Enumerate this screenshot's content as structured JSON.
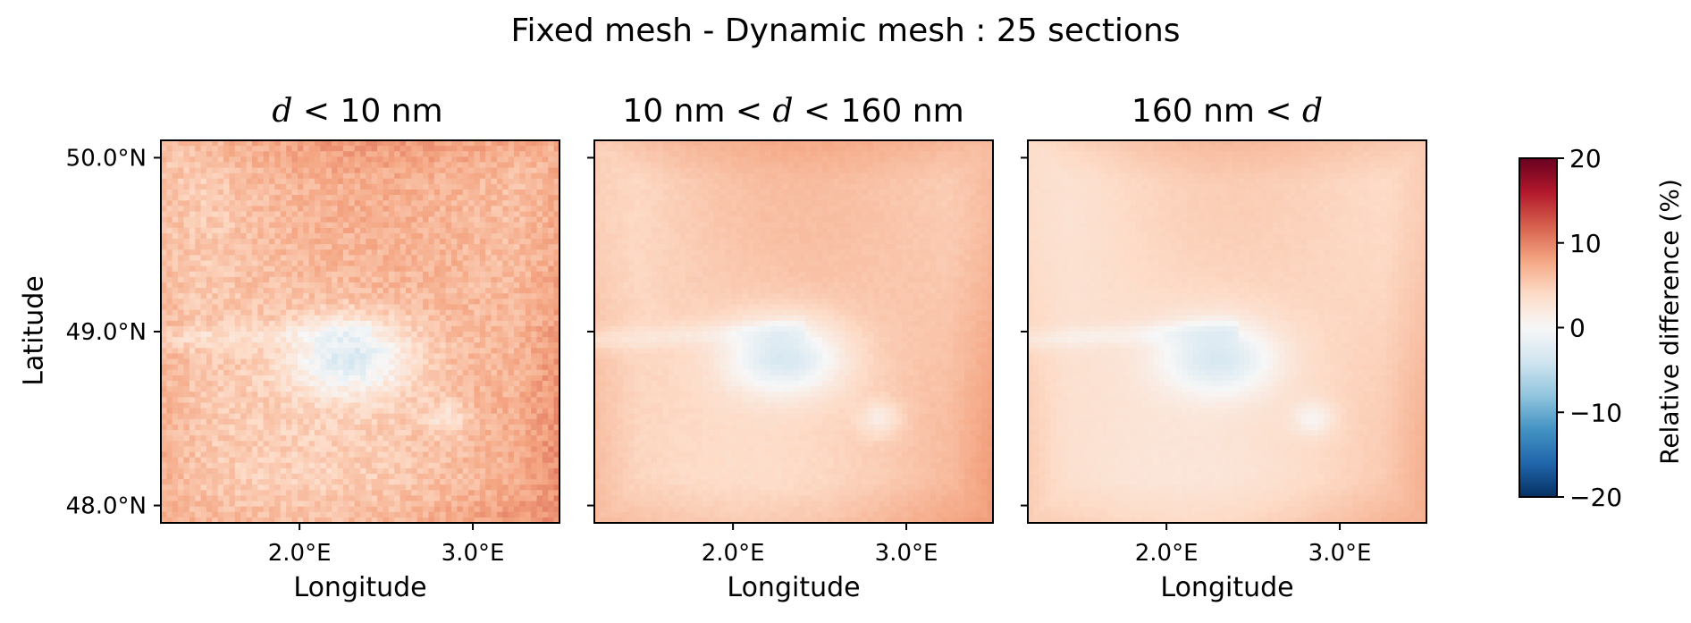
{
  "chart_data": {
    "type": "heatmap",
    "title": "Fixed mesh - Dynamic mesh : 25 sections",
    "xlabel": "Longitude",
    "ylabel": "Latitude",
    "xlim": [
      1.2,
      3.5
    ],
    "ylim": [
      47.9,
      50.1
    ],
    "x_ticks": [
      {
        "value": 2.0,
        "label": "2.0°E"
      },
      {
        "value": 3.0,
        "label": "3.0°E"
      }
    ],
    "y_ticks": [
      {
        "value": 48.0,
        "label": "48.0°N"
      },
      {
        "value": 49.0,
        "label": "49.0°N"
      },
      {
        "value": 50.0,
        "label": "50.0°N"
      }
    ],
    "colorbar": {
      "label": "Relative difference (%)",
      "colormap": "RdBu_r",
      "range": [
        -20,
        20
      ],
      "ticks": [
        {
          "value": 20,
          "label": "20"
        },
        {
          "value": 10,
          "label": "10"
        },
        {
          "value": 0,
          "label": "0"
        },
        {
          "value": -10,
          "label": "−10"
        },
        {
          "value": -20,
          "label": "−20"
        }
      ]
    },
    "panels": [
      {
        "title_math": "d",
        "title_pre": "",
        "title_mid": "< 10 nm",
        "title_post": "",
        "noise": 1.3,
        "base": 6.0,
        "min_center": -2.5
      },
      {
        "title_math": "d",
        "title_pre": "10 nm <",
        "title_mid": "",
        "title_post": "< 160 nm",
        "noise": 0.25,
        "base": 5.0,
        "min_center": -3.0
      },
      {
        "title_math": "d",
        "title_pre": "160 nm <",
        "title_mid": "",
        "title_post": "",
        "noise": 0.15,
        "base": 3.8,
        "min_center": -3.0
      }
    ],
    "panel_titles": [
      "< 10 nm",
      "10 nm <",
      "< 160 nm",
      "160 nm <"
    ],
    "field_features": {
      "minimum_location": {
        "lon": 2.3,
        "lat": 48.85
      },
      "secondary_minimum_location": {
        "lon": 2.85,
        "lat": 48.5
      },
      "value_range_approx": [
        -3,
        9
      ]
    }
  }
}
